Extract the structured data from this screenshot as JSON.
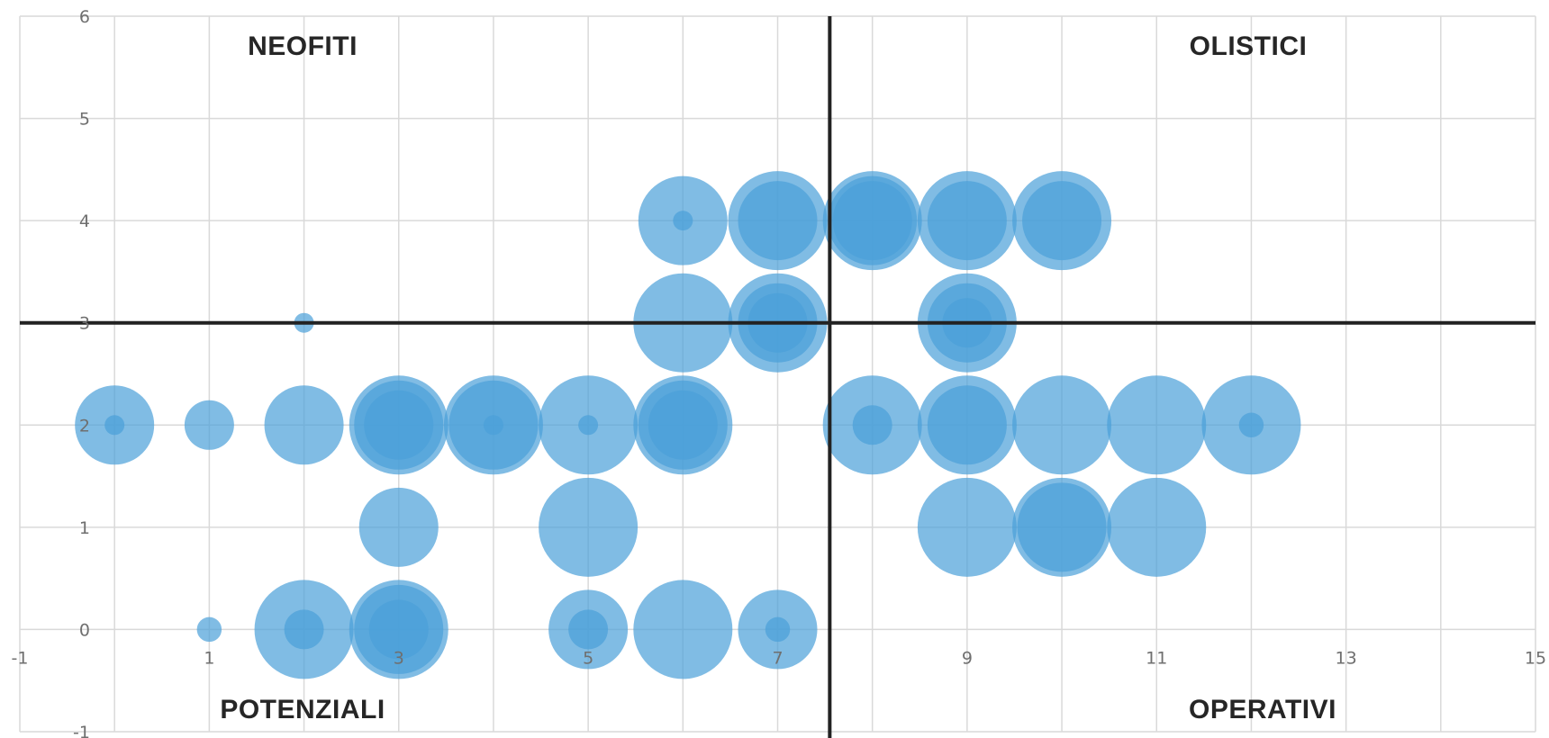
{
  "chart_data": {
    "type": "scatter",
    "subtype": "bubble",
    "title": "",
    "xlabel": "",
    "ylabel": "",
    "xlim": [
      -1,
      15
    ],
    "ylim": [
      -1,
      6
    ],
    "x_ticks": [
      "-1",
      "1",
      "3",
      "5",
      "7",
      "9",
      "11",
      "13",
      "15"
    ],
    "y_ticks": [
      "-1",
      "0",
      "1",
      "2",
      "3",
      "4",
      "5",
      "6"
    ],
    "grid": true,
    "quadrant_lines": {
      "x": 7.55,
      "y": 3
    },
    "quadrant_labels": {
      "top_left": "NEOFITI",
      "top_right": "OLISTICI",
      "bottom_left": "POTENZIALI",
      "bottom_right": "OPERATIVI"
    },
    "bubble_color": "#4a9fd9",
    "line_color": "#222222",
    "series": [
      {
        "points": [
          {
            "x": 6,
            "y": 4,
            "size": 0.9
          },
          {
            "x": 6,
            "y": 4,
            "size": 0.2
          },
          {
            "x": 7,
            "y": 4,
            "size": 1.0
          },
          {
            "x": 7,
            "y": 4,
            "size": 0.8
          },
          {
            "x": 8,
            "y": 4,
            "size": 1.0
          },
          {
            "x": 8,
            "y": 4,
            "size": 0.9
          },
          {
            "x": 8,
            "y": 4,
            "size": 0.8
          },
          {
            "x": 9,
            "y": 4,
            "size": 1.0
          },
          {
            "x": 9,
            "y": 4,
            "size": 0.8
          },
          {
            "x": 10,
            "y": 4,
            "size": 1.0
          },
          {
            "x": 10,
            "y": 4,
            "size": 0.8
          },
          {
            "x": 2,
            "y": 3,
            "size": 0.2
          },
          {
            "x": 6,
            "y": 3,
            "size": 1.0
          },
          {
            "x": 7,
            "y": 3,
            "size": 1.0
          },
          {
            "x": 7,
            "y": 3,
            "size": 0.8
          },
          {
            "x": 7,
            "y": 3,
            "size": 0.6
          },
          {
            "x": 9,
            "y": 3,
            "size": 1.0
          },
          {
            "x": 9,
            "y": 3,
            "size": 0.8
          },
          {
            "x": 9,
            "y": 3,
            "size": 0.5
          },
          {
            "x": 0,
            "y": 2,
            "size": 0.8
          },
          {
            "x": 0,
            "y": 2,
            "size": 0.2
          },
          {
            "x": 1,
            "y": 2,
            "size": 0.5
          },
          {
            "x": 2,
            "y": 2,
            "size": 0.8
          },
          {
            "x": 3,
            "y": 2,
            "size": 1.0
          },
          {
            "x": 3,
            "y": 2,
            "size": 0.9
          },
          {
            "x": 3,
            "y": 2,
            "size": 0.7
          },
          {
            "x": 4,
            "y": 2,
            "size": 1.0
          },
          {
            "x": 4,
            "y": 2,
            "size": 0.9
          },
          {
            "x": 4,
            "y": 2,
            "size": 0.2
          },
          {
            "x": 5,
            "y": 2,
            "size": 1.0
          },
          {
            "x": 5,
            "y": 2,
            "size": 0.2
          },
          {
            "x": 6,
            "y": 2,
            "size": 1.0
          },
          {
            "x": 6,
            "y": 2,
            "size": 0.9
          },
          {
            "x": 6,
            "y": 2,
            "size": 0.7
          },
          {
            "x": 8,
            "y": 2,
            "size": 1.0
          },
          {
            "x": 8,
            "y": 2,
            "size": 0.4
          },
          {
            "x": 9,
            "y": 2,
            "size": 1.0
          },
          {
            "x": 9,
            "y": 2,
            "size": 0.8
          },
          {
            "x": 10,
            "y": 2,
            "size": 1.0
          },
          {
            "x": 11,
            "y": 2,
            "size": 1.0
          },
          {
            "x": 12,
            "y": 2,
            "size": 1.0
          },
          {
            "x": 12,
            "y": 2,
            "size": 0.25
          },
          {
            "x": 3,
            "y": 1,
            "size": 0.8
          },
          {
            "x": 5,
            "y": 1,
            "size": 1.0
          },
          {
            "x": 9,
            "y": 1,
            "size": 1.0
          },
          {
            "x": 10,
            "y": 1,
            "size": 1.0
          },
          {
            "x": 10,
            "y": 1,
            "size": 0.9
          },
          {
            "x": 11,
            "y": 1,
            "size": 1.0
          },
          {
            "x": 1,
            "y": 0,
            "size": 0.25
          },
          {
            "x": 2,
            "y": 0,
            "size": 1.0
          },
          {
            "x": 2,
            "y": 0,
            "size": 0.4
          },
          {
            "x": 3,
            "y": 0,
            "size": 1.0
          },
          {
            "x": 3,
            "y": 0,
            "size": 0.9
          },
          {
            "x": 3,
            "y": 0,
            "size": 0.6
          },
          {
            "x": 5,
            "y": 0,
            "size": 0.8
          },
          {
            "x": 5,
            "y": 0,
            "size": 0.4
          },
          {
            "x": 6,
            "y": 0,
            "size": 1.0
          },
          {
            "x": 7,
            "y": 0,
            "size": 0.8
          },
          {
            "x": 7,
            "y": 0,
            "size": 0.25
          }
        ]
      }
    ]
  }
}
